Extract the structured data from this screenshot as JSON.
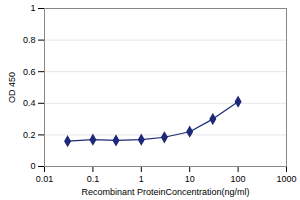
{
  "chart_data": {
    "type": "line",
    "x_label": "Recombinant ProteinConcentration(ng/ml)",
    "y_label": "OD 450",
    "x": [
      0.03,
      0.1,
      0.3,
      1,
      3,
      10,
      30,
      100
    ],
    "values": [
      0.16,
      0.17,
      0.165,
      0.17,
      0.185,
      0.22,
      0.3,
      0.41
    ],
    "color": "#1c2a78",
    "xlim": [
      0.01,
      1000
    ],
    "xticks": [
      0.01,
      0.1,
      1,
      10,
      100,
      1000
    ],
    "ylim": [
      0,
      1
    ],
    "yticks": [
      0,
      0.2,
      0.4,
      0.6,
      0.8,
      1
    ],
    "log": "x",
    "grid": true,
    "marker": "diamond",
    "line_style": "solid"
  }
}
